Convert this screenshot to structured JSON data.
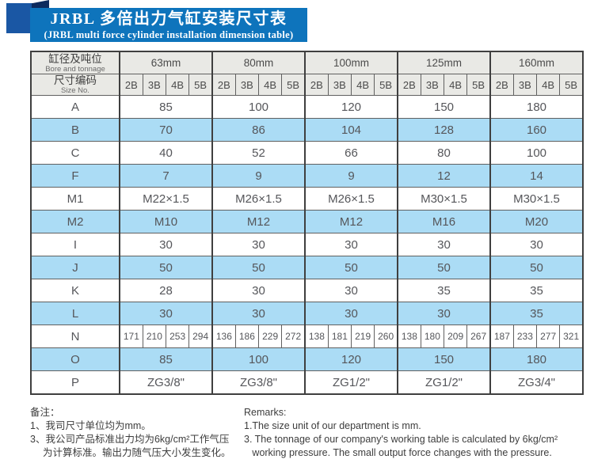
{
  "title": {
    "zh": "JRBL 多倍出力气缸安装尺寸表",
    "en": "(JRBL multi force cylinder installation dimension table)"
  },
  "colors": {
    "banner_blue": "#0e74bc",
    "ribbon_navy": "#1a57a4",
    "fold_navy": "#0d2b5e",
    "row_blue": "#abdcf5",
    "header_gray": "#e9e9e5",
    "border_dark": "#3f3f3f",
    "border_mid": "#606060",
    "text_gray": "#55565a"
  },
  "table": {
    "corner": {
      "zh": "缸径及吨位",
      "en": "Bore and tonnage"
    },
    "size_no": {
      "zh": "尺寸编码",
      "en": "Size No."
    },
    "bores": [
      "63mm",
      "80mm",
      "100mm",
      "125mm",
      "160mm"
    ],
    "size_codes": [
      "2B",
      "3B",
      "4B",
      "5B"
    ],
    "rows": [
      {
        "label": "A",
        "type": "merged",
        "shaded": false,
        "values": [
          "85",
          "100",
          "120",
          "150",
          "180"
        ]
      },
      {
        "label": "B",
        "type": "merged",
        "shaded": true,
        "values": [
          "70",
          "86",
          "104",
          "128",
          "160"
        ]
      },
      {
        "label": "C",
        "type": "merged",
        "shaded": false,
        "values": [
          "40",
          "52",
          "66",
          "80",
          "100"
        ]
      },
      {
        "label": "F",
        "type": "merged",
        "shaded": true,
        "values": [
          "7",
          "9",
          "9",
          "12",
          "14"
        ]
      },
      {
        "label": "M1",
        "type": "merged",
        "shaded": false,
        "values": [
          "M22×1.5",
          "M26×1.5",
          "M26×1.5",
          "M30×1.5",
          "M30×1.5"
        ]
      },
      {
        "label": "M2",
        "type": "merged",
        "shaded": true,
        "values": [
          "M10",
          "M12",
          "M12",
          "M16",
          "M20"
        ]
      },
      {
        "label": "I",
        "type": "merged",
        "shaded": false,
        "values": [
          "30",
          "30",
          "30",
          "30",
          "30"
        ]
      },
      {
        "label": "J",
        "type": "merged",
        "shaded": true,
        "values": [
          "50",
          "50",
          "50",
          "50",
          "50"
        ]
      },
      {
        "label": "K",
        "type": "merged",
        "shaded": false,
        "values": [
          "28",
          "30",
          "30",
          "35",
          "35"
        ]
      },
      {
        "label": "L",
        "type": "merged",
        "shaded": true,
        "values": [
          "30",
          "30",
          "30",
          "30",
          "35"
        ]
      },
      {
        "label": "N",
        "type": "percell",
        "shaded": false,
        "values": [
          [
            "171",
            "210",
            "253",
            "294"
          ],
          [
            "136",
            "186",
            "229",
            "272"
          ],
          [
            "138",
            "181",
            "219",
            "260"
          ],
          [
            "138",
            "180",
            "209",
            "267"
          ],
          [
            "187",
            "233",
            "277",
            "321"
          ]
        ]
      },
      {
        "label": "O",
        "type": "merged",
        "shaded": true,
        "values": [
          "85",
          "100",
          "120",
          "150",
          "180"
        ]
      },
      {
        "label": "P",
        "type": "merged",
        "shaded": false,
        "values": [
          "ZG3/8\"",
          "ZG3/8\"",
          "ZG1/2\"",
          "ZG1/2\"",
          "ZG3/4\""
        ]
      }
    ]
  },
  "notes_zh": {
    "title": "备注：",
    "lines": [
      "1、我司尺寸单位均为mm。",
      "3、我公司产品标准出力均为6kg/cm²工作气压",
      "　 为计算标准。输出力随气压大小发生变化。"
    ]
  },
  "notes_en": {
    "title": "Remarks:",
    "lines": [
      "1.The size unit of our department is mm.",
      "3. The tonnage of our company's working table is calculated by 6kg/cm²",
      "   working pressure. The small output force changes with the pressure."
    ]
  }
}
